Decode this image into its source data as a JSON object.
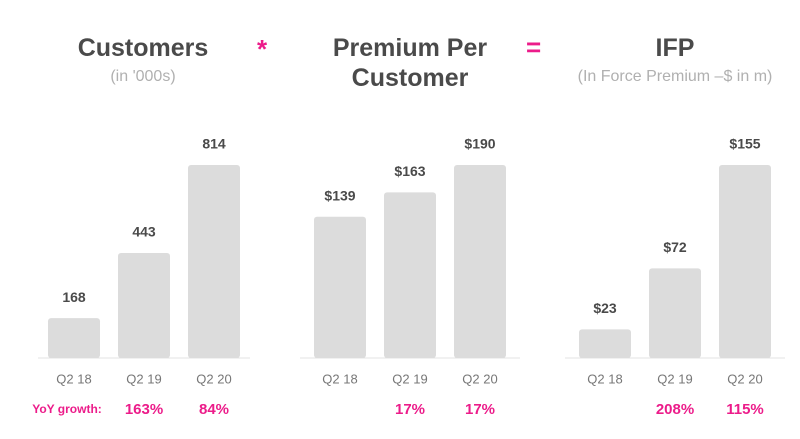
{
  "chart_data": [
    {
      "type": "bar",
      "title": "Customers",
      "subtitle": "(in '000s)",
      "categories": [
        "Q2 18",
        "Q2 19",
        "Q2 20"
      ],
      "values": [
        168,
        443,
        814
      ],
      "color": "#dcdcdc",
      "growth": {
        "label": "YoY growth:",
        "values": [
          null,
          163,
          84
        ],
        "value_labels": [
          null,
          "163%",
          "84%"
        ]
      }
    },
    {
      "type": "bar",
      "title": "Premium Per Customer",
      "categories": [
        "Q2 18",
        "Q2 19",
        "Q2 20"
      ],
      "values": [
        139,
        163,
        190
      ],
      "value_labels": [
        "$139",
        "$163",
        "$190"
      ],
      "color": "#dcdcdc",
      "growth": {
        "values": [
          null,
          17,
          17
        ],
        "value_labels": [
          null,
          "17%",
          "17%"
        ]
      }
    },
    {
      "type": "bar",
      "title": "IFP",
      "subtitle": "(In Force Premium –$ in m)",
      "categories": [
        "Q2 18",
        "Q2 19",
        "Q2 20"
      ],
      "values": [
        23,
        72,
        155
      ],
      "value_labels": [
        "$23",
        "$72",
        "$155"
      ],
      "color": "#dcdcdc",
      "growth": {
        "values": [
          null,
          208,
          115
        ],
        "value_labels": [
          null,
          "208%",
          "115%"
        ]
      }
    }
  ],
  "operators": [
    "*",
    "="
  ]
}
